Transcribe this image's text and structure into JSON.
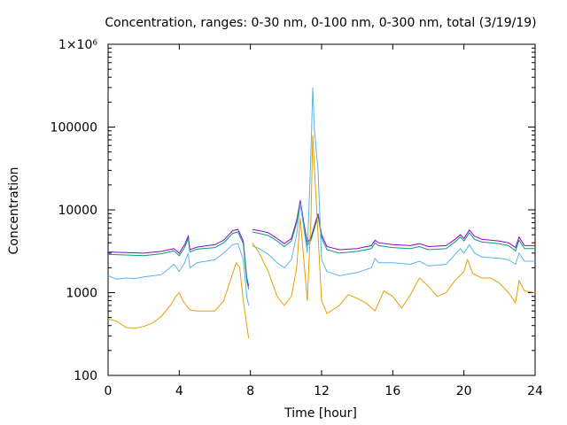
{
  "chart_data": {
    "type": "line",
    "title": "Concentration, ranges: 0-30 nm, 0-100 nm, 0-300 nm, total (3/19/19)",
    "xlabel": "Time [hour]",
    "ylabel": "Concentration",
    "xlim": [
      0,
      24
    ],
    "ylim": [
      100,
      1000000
    ],
    "yscale": "log",
    "grid": false,
    "x_ticks": [
      0,
      4,
      8,
      12,
      16,
      20,
      24
    ],
    "x_tick_labels": [
      "0",
      "4",
      "8",
      "12",
      "16",
      "20",
      "24"
    ],
    "y_ticks": [
      100,
      1000,
      10000,
      100000,
      1000000
    ],
    "y_tick_labels": [
      "100",
      "1000",
      "10000",
      "100000",
      "1×10⁶"
    ],
    "colors": {
      "total": "#9400d3",
      "range_0_300": "#009e73",
      "range_0_100": "#56b4e9",
      "range_0_30": "#e69f00"
    },
    "series": [
      {
        "key": "total",
        "color": "#9400d3",
        "segments": [
          [
            [
              0,
              3100
            ],
            [
              1,
              3050
            ],
            [
              2,
              3000
            ],
            [
              3,
              3150
            ],
            [
              3.7,
              3400
            ],
            [
              4.0,
              3000
            ],
            [
              4.3,
              3800
            ],
            [
              4.5,
              4800
            ],
            [
              4.6,
              3300
            ],
            [
              5,
              3550
            ],
            [
              6,
              3800
            ],
            [
              6.5,
              4300
            ],
            [
              7,
              5600
            ],
            [
              7.3,
              5800
            ],
            [
              7.6,
              4200
            ],
            [
              7.8,
              1500
            ],
            [
              7.9,
              1200
            ]
          ],
          [
            [
              8.1,
              5800
            ],
            [
              8.5,
              5600
            ],
            [
              9,
              5300
            ],
            [
              9.5,
              4500
            ],
            [
              9.9,
              3900
            ],
            [
              10.3,
              4500
            ],
            [
              10.6,
              7500
            ],
            [
              10.8,
              13000
            ],
            [
              11.0,
              7000
            ],
            [
              11.2,
              4000
            ],
            [
              11.4,
              4600
            ],
            [
              11.6,
              6500
            ],
            [
              11.8,
              9000
            ],
            [
              12.0,
              5000
            ],
            [
              12.3,
              3600
            ],
            [
              13,
              3300
            ],
            [
              14,
              3400
            ],
            [
              14.8,
              3700
            ],
            [
              15.0,
              4300
            ],
            [
              15.2,
              4000
            ],
            [
              16,
              3800
            ],
            [
              17,
              3700
            ],
            [
              17.5,
              3900
            ],
            [
              18,
              3600
            ],
            [
              19,
              3700
            ],
            [
              19.5,
              4400
            ],
            [
              19.8,
              5000
            ],
            [
              20,
              4500
            ],
            [
              20.3,
              5700
            ],
            [
              20.6,
              4800
            ],
            [
              21,
              4400
            ],
            [
              22,
              4200
            ],
            [
              22.5,
              4000
            ],
            [
              22.9,
              3500
            ],
            [
              23.1,
              4700
            ],
            [
              23.4,
              3700
            ],
            [
              24,
              3700
            ]
          ]
        ]
      },
      {
        "key": "range_0_300",
        "color": "#009e73",
        "segments": [
          [
            [
              0,
              2900
            ],
            [
              1,
              2850
            ],
            [
              2,
              2800
            ],
            [
              3,
              2950
            ],
            [
              3.7,
              3200
            ],
            [
              4.0,
              2800
            ],
            [
              4.3,
              3500
            ],
            [
              4.5,
              4500
            ],
            [
              4.6,
              3100
            ],
            [
              5,
              3350
            ],
            [
              6,
              3500
            ],
            [
              6.5,
              4000
            ],
            [
              7,
              5200
            ],
            [
              7.3,
              5400
            ],
            [
              7.6,
              3900
            ],
            [
              7.8,
              1400
            ],
            [
              7.9,
              1100
            ]
          ],
          [
            [
              8.1,
              5400
            ],
            [
              8.5,
              5200
            ],
            [
              9,
              4900
            ],
            [
              9.5,
              4200
            ],
            [
              9.9,
              3600
            ],
            [
              10.3,
              4200
            ],
            [
              10.6,
              7000
            ],
            [
              10.8,
              12000
            ],
            [
              11.0,
              6500
            ],
            [
              11.2,
              3700
            ],
            [
              11.4,
              4300
            ],
            [
              11.6,
              6000
            ],
            [
              11.8,
              8500
            ],
            [
              12.0,
              4600
            ],
            [
              12.3,
              3300
            ],
            [
              13,
              3000
            ],
            [
              14,
              3150
            ],
            [
              14.8,
              3400
            ],
            [
              15.0,
              4000
            ],
            [
              15.2,
              3700
            ],
            [
              16,
              3500
            ],
            [
              17,
              3400
            ],
            [
              17.5,
              3600
            ],
            [
              18,
              3300
            ],
            [
              19,
              3400
            ],
            [
              19.5,
              4100
            ],
            [
              19.8,
              4700
            ],
            [
              20,
              4200
            ],
            [
              20.3,
              5300
            ],
            [
              20.6,
              4400
            ],
            [
              21,
              4100
            ],
            [
              22,
              3900
            ],
            [
              22.5,
              3700
            ],
            [
              22.9,
              3200
            ],
            [
              23.1,
              4300
            ],
            [
              23.4,
              3400
            ],
            [
              24,
              3400
            ]
          ]
        ]
      },
      {
        "key": "range_0_100",
        "color": "#56b4e9",
        "segments": [
          [
            [
              0,
              1600
            ],
            [
              0.5,
              1450
            ],
            [
              1,
              1500
            ],
            [
              1.5,
              1480
            ],
            [
              2,
              1550
            ],
            [
              3,
              1650
            ],
            [
              3.7,
              2200
            ],
            [
              4.0,
              1800
            ],
            [
              4.3,
              2300
            ],
            [
              4.5,
              3000
            ],
            [
              4.6,
              2000
            ],
            [
              5,
              2300
            ],
            [
              6,
              2500
            ],
            [
              6.5,
              3000
            ],
            [
              7,
              3800
            ],
            [
              7.3,
              3900
            ],
            [
              7.6,
              2500
            ],
            [
              7.8,
              900
            ],
            [
              7.9,
              700
            ]
          ],
          [
            [
              8.1,
              3700
            ],
            [
              8.5,
              3400
            ],
            [
              9,
              2900
            ],
            [
              9.5,
              2300
            ],
            [
              9.9,
              2000
            ],
            [
              10.3,
              2500
            ],
            [
              10.6,
              5000
            ],
            [
              10.8,
              12000
            ],
            [
              11.0,
              6000
            ],
            [
              11.2,
              3000
            ],
            [
              11.4,
              50000
            ],
            [
              11.5,
              300000
            ],
            [
              11.6,
              90000
            ],
            [
              11.8,
              30000
            ],
            [
              12.0,
              2500
            ],
            [
              12.3,
              1800
            ],
            [
              13,
              1600
            ],
            [
              14,
              1750
            ],
            [
              14.8,
              2000
            ],
            [
              15.0,
              2600
            ],
            [
              15.2,
              2300
            ],
            [
              16,
              2300
            ],
            [
              17,
              2200
            ],
            [
              17.5,
              2400
            ],
            [
              18,
              2100
            ],
            [
              19,
              2200
            ],
            [
              19.5,
              2900
            ],
            [
              19.8,
              3400
            ],
            [
              20,
              3000
            ],
            [
              20.3,
              3800
            ],
            [
              20.6,
              3000
            ],
            [
              21,
              2700
            ],
            [
              22,
              2600
            ],
            [
              22.5,
              2500
            ],
            [
              22.9,
              2200
            ],
            [
              23.1,
              3000
            ],
            [
              23.4,
              2400
            ],
            [
              24,
              2400
            ]
          ]
        ]
      },
      {
        "key": "range_0_30",
        "color": "#e69f00",
        "segments": [
          [
            [
              0,
              480
            ],
            [
              0.5,
              450
            ],
            [
              1,
              380
            ],
            [
              1.5,
              370
            ],
            [
              2,
              390
            ],
            [
              2.5,
              430
            ],
            [
              3,
              520
            ],
            [
              3.5,
              700
            ],
            [
              3.8,
              900
            ],
            [
              4.0,
              1000
            ],
            [
              4.2,
              800
            ],
            [
              4.4,
              700
            ],
            [
              4.6,
              620
            ],
            [
              5,
              600
            ],
            [
              6,
              600
            ],
            [
              6.5,
              800
            ],
            [
              7,
              1700
            ],
            [
              7.2,
              2300
            ],
            [
              7.4,
              2000
            ],
            [
              7.6,
              800
            ],
            [
              7.8,
              400
            ],
            [
              7.9,
              280
            ]
          ],
          [
            [
              8.1,
              4000
            ],
            [
              8.5,
              3000
            ],
            [
              9,
              1800
            ],
            [
              9.5,
              900
            ],
            [
              9.9,
              700
            ],
            [
              10.3,
              900
            ],
            [
              10.6,
              2000
            ],
            [
              10.8,
              8000
            ],
            [
              11.0,
              2500
            ],
            [
              11.2,
              800
            ],
            [
              11.4,
              8000
            ],
            [
              11.5,
              80000
            ],
            [
              11.6,
              30000
            ],
            [
              11.8,
              5000
            ],
            [
              12.0,
              800
            ],
            [
              12.3,
              560
            ],
            [
              13,
              700
            ],
            [
              13.5,
              950
            ],
            [
              14,
              850
            ],
            [
              14.5,
              750
            ],
            [
              15,
              600
            ],
            [
              15.5,
              1050
            ],
            [
              16,
              900
            ],
            [
              16.5,
              650
            ],
            [
              17,
              950
            ],
            [
              17.5,
              1500
            ],
            [
              18,
              1200
            ],
            [
              18.5,
              900
            ],
            [
              19,
              1000
            ],
            [
              19.5,
              1400
            ],
            [
              20,
              1800
            ],
            [
              20.2,
              2500
            ],
            [
              20.5,
              1700
            ],
            [
              21,
              1500
            ],
            [
              21.5,
              1500
            ],
            [
              22,
              1300
            ],
            [
              22.5,
              1000
            ],
            [
              22.9,
              750
            ],
            [
              23.1,
              1400
            ],
            [
              23.4,
              1050
            ],
            [
              24,
              1000
            ]
          ]
        ]
      }
    ]
  }
}
